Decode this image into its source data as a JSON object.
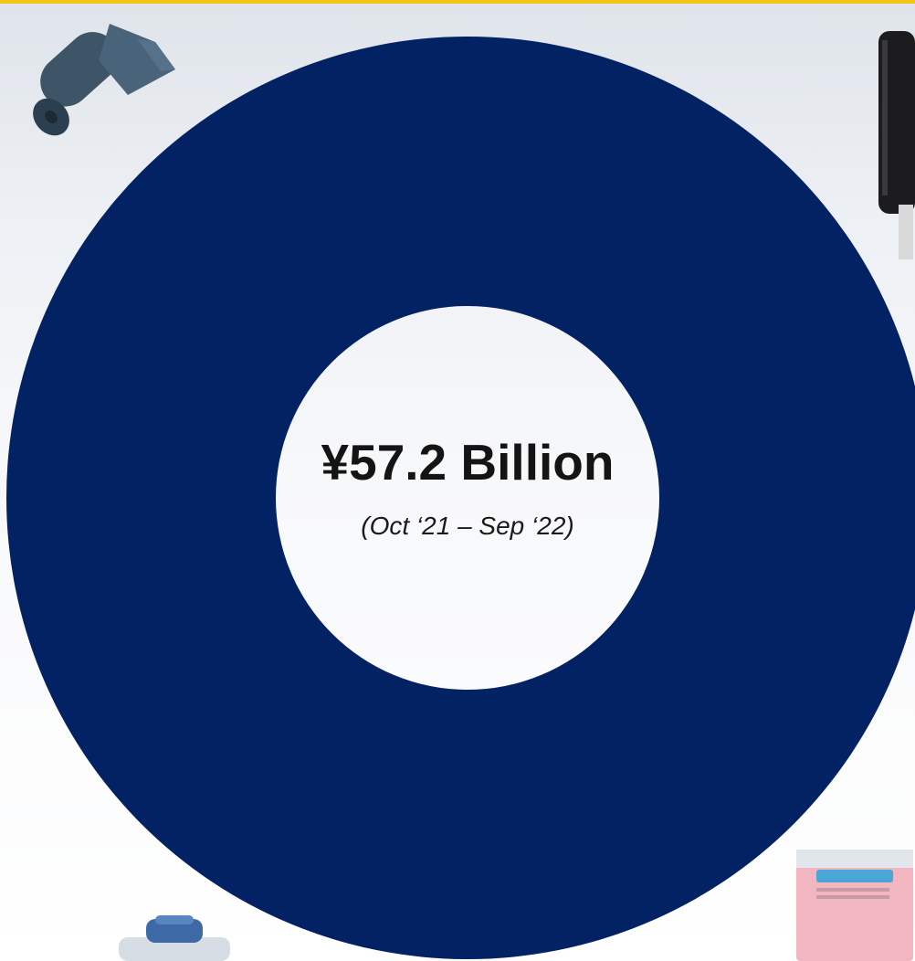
{
  "chart_data": {
    "type": "pie",
    "style": "donut",
    "slices": [
      {
        "value": 100,
        "color": "#032264"
      }
    ],
    "center_value": "¥57.2 Billion",
    "center_subtitle": "(Oct ‘21 – Sep ‘22)"
  },
  "colors": {
    "accent_bar": "#f5c216",
    "donut": "#032264"
  },
  "images": [
    {
      "name": "trash-bag-roll-image"
    },
    {
      "name": "paper-towel-dispenser-image"
    },
    {
      "name": "cleaning-bottle-image"
    },
    {
      "name": "cleaning-wipes-pack-image"
    }
  ]
}
